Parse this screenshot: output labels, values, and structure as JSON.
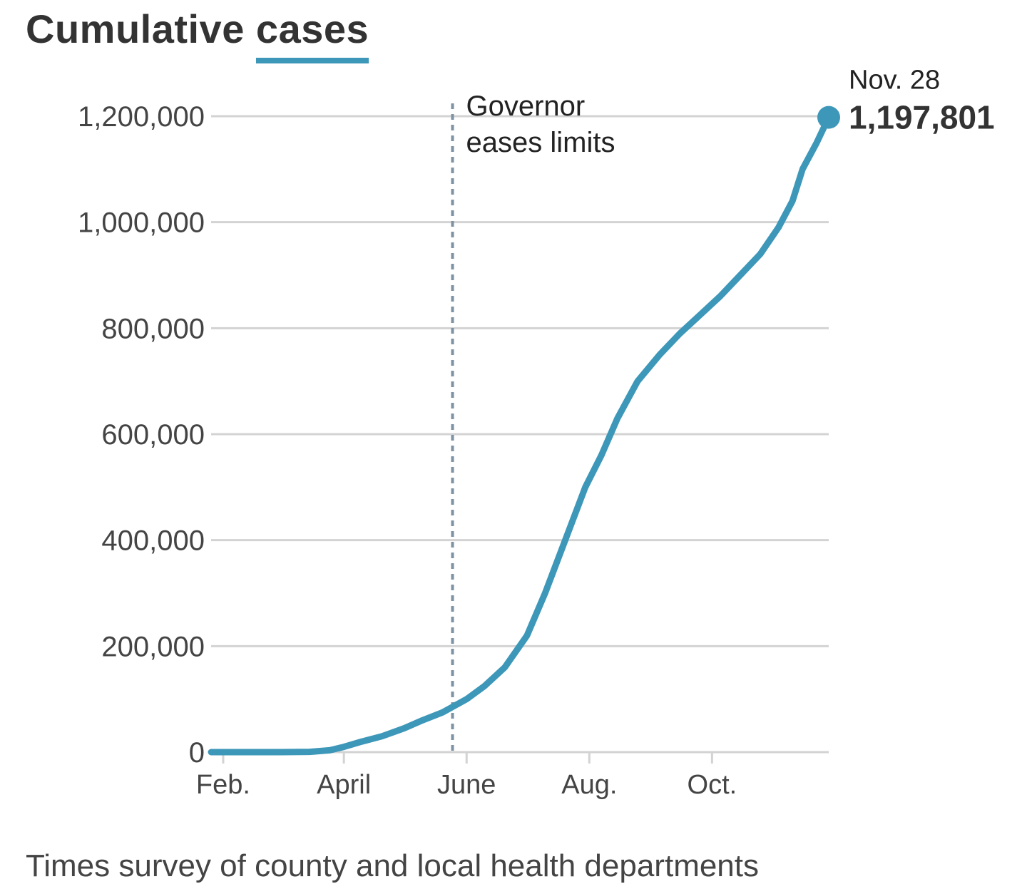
{
  "title_prefix": "Cumulative",
  "title_series": "cases",
  "source": "Times survey of county and local health departments",
  "colors": {
    "series": "#3d97b9",
    "grid": "#d3d3d3",
    "annotation_line": "#7d93a3",
    "text": "#333333"
  },
  "chart_data": {
    "type": "line",
    "title": "Cumulative cases",
    "ylim": [
      0,
      1200000
    ],
    "y_ticks": [
      {
        "value": 0,
        "label": "0"
      },
      {
        "value": 200000,
        "label": "200,000"
      },
      {
        "value": 400000,
        "label": "400,000"
      },
      {
        "value": 600000,
        "label": "600,000"
      },
      {
        "value": 800000,
        "label": "800,000"
      },
      {
        "value": 1000000,
        "label": "1,000,000"
      },
      {
        "value": 1200000,
        "label": "1,200,000"
      }
    ],
    "x_ticks": [
      {
        "date": "2020-02-01",
        "label": "Feb."
      },
      {
        "date": "2020-04-01",
        "label": "April"
      },
      {
        "date": "2020-06-01",
        "label": "June"
      },
      {
        "date": "2020-08-01",
        "label": "Aug."
      },
      {
        "date": "2020-10-01",
        "label": "Oct."
      }
    ],
    "grid": true,
    "series": [
      {
        "name": "cases",
        "points": [
          [
            "2020-01-26",
            0
          ],
          [
            "2020-02-15",
            0
          ],
          [
            "2020-03-01",
            0
          ],
          [
            "2020-03-15",
            500
          ],
          [
            "2020-03-25",
            3500
          ],
          [
            "2020-04-01",
            10000
          ],
          [
            "2020-04-10",
            20000
          ],
          [
            "2020-04-20",
            30000
          ],
          [
            "2020-05-01",
            45000
          ],
          [
            "2020-05-10",
            60000
          ],
          [
            "2020-05-20",
            75000
          ],
          [
            "2020-06-01",
            100000
          ],
          [
            "2020-06-10",
            125000
          ],
          [
            "2020-06-20",
            160000
          ],
          [
            "2020-07-01",
            220000
          ],
          [
            "2020-07-10",
            300000
          ],
          [
            "2020-07-20",
            400000
          ],
          [
            "2020-07-30",
            500000
          ],
          [
            "2020-08-07",
            560000
          ],
          [
            "2020-08-15",
            630000
          ],
          [
            "2020-08-25",
            700000
          ],
          [
            "2020-09-05",
            750000
          ],
          [
            "2020-09-15",
            790000
          ],
          [
            "2020-09-25",
            825000
          ],
          [
            "2020-10-05",
            860000
          ],
          [
            "2020-10-15",
            900000
          ],
          [
            "2020-10-25",
            940000
          ],
          [
            "2020-11-03",
            990000
          ],
          [
            "2020-11-10",
            1040000
          ],
          [
            "2020-11-15",
            1100000
          ],
          [
            "2020-11-22",
            1150000
          ],
          [
            "2020-11-28",
            1197801
          ]
        ]
      }
    ],
    "annotations": [
      {
        "date": "2020-05-25",
        "line1": "Governor",
        "line2": "eases limits"
      }
    ],
    "end_label": {
      "date": "Nov. 28",
      "value": "1,197,801"
    }
  }
}
